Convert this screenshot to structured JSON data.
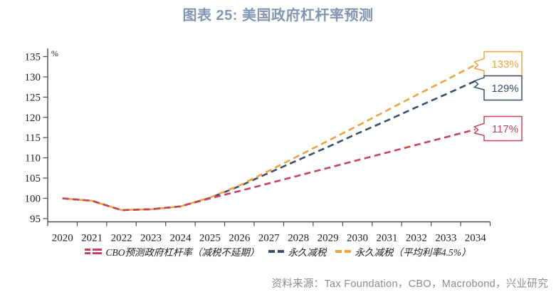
{
  "title": "图表 25: 美国政府杠杆率预测",
  "source_note": "资料来源：Tax Foundation，CBO，Macrobond，兴业研究",
  "colors": {
    "title": "#8295B3",
    "cbo_red": "#C7425A",
    "permanent_navy": "#3A4E6F",
    "permanent45_orange": "#F0A33E",
    "axis": "#4A4A4A",
    "tick_label": "#1F1F1F",
    "source_text": "#8C8C8C",
    "callout_fill": "#FFFFFF"
  },
  "chart_data": {
    "type": "line",
    "title": "图表 25: 美国政府杠杆率预测",
    "unit_label": "%",
    "x": [
      2020,
      2021,
      2022,
      2023,
      2024,
      2025,
      2026,
      2027,
      2028,
      2029,
      2030,
      2031,
      2032,
      2033,
      2034
    ],
    "ylim": [
      95,
      135
    ],
    "ytick_step": 5,
    "yticks": [
      95,
      100,
      105,
      110,
      115,
      120,
      125,
      130,
      135
    ],
    "grid": false,
    "legend_position": "bottom",
    "series": [
      {
        "name": "CBO预测政府杠杆率（减税不延期）",
        "color": "#C7425A",
        "style": "double-dashed",
        "end_label": "117%",
        "values": [
          100.0,
          99.4,
          97.1,
          97.3,
          98.0,
          100.0,
          101.8,
          103.7,
          105.6,
          107.5,
          109.4,
          111.3,
          113.2,
          115.1,
          117.0
        ]
      },
      {
        "name": "永久减税",
        "color": "#3A4E6F",
        "style": "dashed",
        "end_label": "129%",
        "values": [
          100.0,
          99.4,
          97.1,
          97.3,
          98.0,
          100.1,
          103.0,
          106.3,
          109.5,
          112.7,
          116.0,
          119.2,
          122.5,
          125.7,
          129.0
        ]
      },
      {
        "name": "永久减税（平均利率4.5%）",
        "color": "#F0A33E",
        "style": "dashed",
        "end_label": "133%",
        "values": [
          100.0,
          99.4,
          97.1,
          97.3,
          98.0,
          100.2,
          103.2,
          106.8,
          110.5,
          114.2,
          117.9,
          121.7,
          125.5,
          129.2,
          133.0
        ]
      }
    ]
  }
}
